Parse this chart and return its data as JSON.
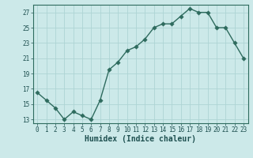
{
  "x": [
    0,
    1,
    2,
    3,
    4,
    5,
    6,
    7,
    8,
    9,
    10,
    11,
    12,
    13,
    14,
    15,
    16,
    17,
    18,
    19,
    20,
    21,
    22,
    23
  ],
  "y": [
    16.5,
    15.5,
    14.5,
    13.0,
    14.0,
    13.5,
    13.0,
    15.5,
    19.5,
    20.5,
    22.0,
    22.5,
    23.5,
    25.0,
    25.5,
    25.5,
    26.5,
    27.5,
    27.0,
    27.0,
    25.0,
    25.0,
    23.0,
    21.0
  ],
  "line_color": "#2e6b5e",
  "marker_color": "#2e6b5e",
  "bg_color": "#cce9e9",
  "grid_color": "#aed4d4",
  "xlabel": "Humidex (Indice chaleur)",
  "xlim": [
    -0.5,
    23.5
  ],
  "ylim": [
    12.5,
    28.0
  ],
  "yticks": [
    13,
    15,
    17,
    19,
    21,
    23,
    25,
    27
  ],
  "xticks": [
    0,
    1,
    2,
    3,
    4,
    5,
    6,
    7,
    8,
    9,
    10,
    11,
    12,
    13,
    14,
    15,
    16,
    17,
    18,
    19,
    20,
    21,
    22,
    23
  ],
  "xtick_labels": [
    "0",
    "1",
    "2",
    "3",
    "4",
    "5",
    "6",
    "7",
    "8",
    "9",
    "10",
    "11",
    "12",
    "13",
    "14",
    "15",
    "16",
    "17",
    "18",
    "19",
    "20",
    "21",
    "22",
    "23"
  ],
  "ytick_labels": [
    "13",
    "15",
    "17",
    "19",
    "21",
    "23",
    "25",
    "27"
  ],
  "font_color": "#1e5050",
  "axis_color": "#2e6b5e",
  "linewidth": 1.0,
  "markersize": 2.8,
  "tick_fontsize": 5.5,
  "xlabel_fontsize": 7.0
}
